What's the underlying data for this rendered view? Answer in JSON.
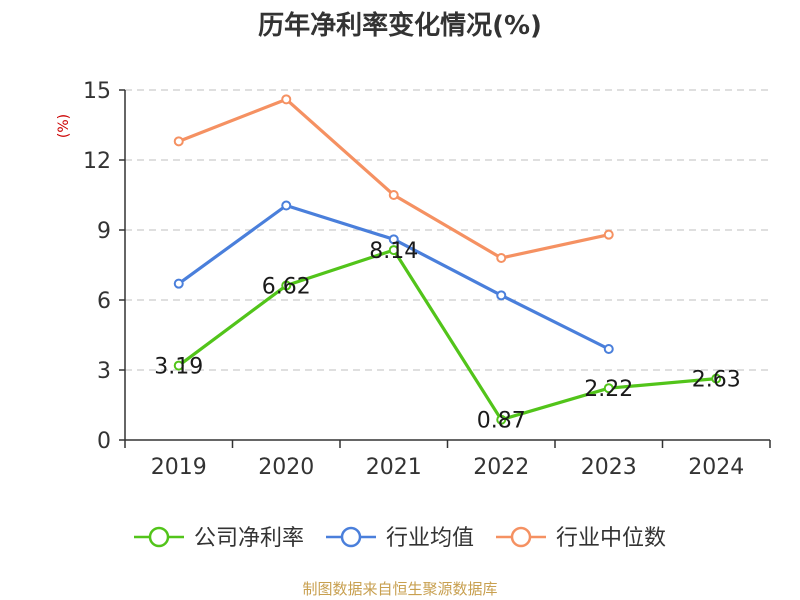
{
  "chart_data": {
    "type": "line",
    "title": "历年净利率变化情况(%)",
    "ylabel": "(%)",
    "xlabel": "",
    "categories": [
      "2019",
      "2020",
      "2021",
      "2022",
      "2023",
      "2024"
    ],
    "ylim": [
      0,
      15
    ],
    "yticks": [
      "0",
      "3",
      "6",
      "9",
      "12",
      "15"
    ],
    "grid": true,
    "legend_position": "bottom",
    "series": [
      {
        "name": "公司净利率",
        "color": "#52c41a",
        "values": [
          3.19,
          6.62,
          8.14,
          0.87,
          2.22,
          2.63
        ],
        "labels": [
          "3.19",
          "6.62",
          "8.14",
          "0.87",
          "2.22",
          "2.63"
        ]
      },
      {
        "name": "行业均值",
        "color": "#4a7fdb",
        "values": [
          6.7,
          10.05,
          8.6,
          6.2,
          3.9,
          null
        ]
      },
      {
        "name": "行业中位数",
        "color": "#f59162",
        "values": [
          12.8,
          14.6,
          10.5,
          7.8,
          8.8,
          null
        ]
      }
    ]
  },
  "source_text": "制图数据来自恒生聚源数据库",
  "colors": {
    "source": "#c8a050",
    "ylabel": "#cc0000",
    "grid": "#cccccc",
    "axis": "#333333"
  }
}
